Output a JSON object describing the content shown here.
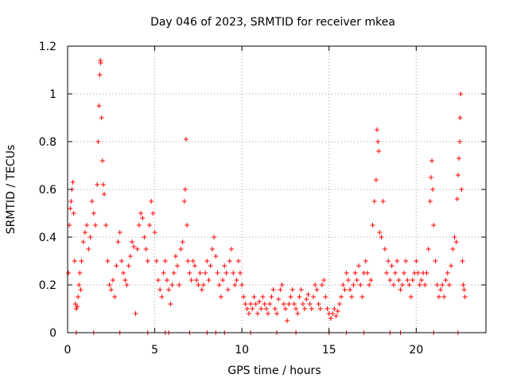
{
  "chart_data": {
    "type": "scatter",
    "title": "Day 046 of 2023, SRMTID for receiver mkea",
    "xlabel": "GPS time / hours",
    "ylabel": "SRMTID / TECUs",
    "xlim": [
      0,
      24
    ],
    "ylim": [
      0,
      1.2
    ],
    "xticks": [
      0,
      5,
      10,
      15,
      20
    ],
    "xtick_labels": [
      "0",
      "5",
      "10",
      "15",
      "20"
    ],
    "yticks": [
      0,
      0.2,
      0.4,
      0.6,
      0.8,
      1.0,
      1.2
    ],
    "ytick_labels": [
      "0",
      "0.2",
      "0.4",
      "0.6",
      "0.8",
      "1",
      "1.2"
    ],
    "grid": true,
    "marker": "+",
    "color": "#ff0000",
    "series": [
      {
        "name": "SRMTID",
        "points": [
          [
            0.05,
            0.25
          ],
          [
            0.1,
            0.45
          ],
          [
            0.15,
            0.52
          ],
          [
            0.2,
            0.55
          ],
          [
            0.25,
            0.6
          ],
          [
            0.3,
            0.63
          ],
          [
            0.35,
            0.5
          ],
          [
            0.4,
            0.3
          ],
          [
            0.45,
            0.12
          ],
          [
            0.5,
            0.1
          ],
          [
            0.55,
            0.11
          ],
          [
            0.6,
            0.15
          ],
          [
            0.65,
            0.2
          ],
          [
            0.7,
            0.25
          ],
          [
            0.75,
            0.18
          ],
          [
            0.8,
            0.3
          ],
          [
            0.9,
            0.38
          ],
          [
            1.0,
            0.42
          ],
          [
            1.1,
            0.45
          ],
          [
            1.2,
            0.35
          ],
          [
            1.3,
            0.4
          ],
          [
            1.4,
            0.55
          ],
          [
            1.5,
            0.5
          ],
          [
            1.6,
            0.45
          ],
          [
            1.7,
            0.62
          ],
          [
            1.75,
            0.8
          ],
          [
            1.8,
            0.95
          ],
          [
            1.85,
            1.08
          ],
          [
            1.88,
            1.14
          ],
          [
            1.9,
            1.13
          ],
          [
            1.95,
            0.9
          ],
          [
            2.0,
            0.72
          ],
          [
            2.05,
            0.62
          ],
          [
            2.1,
            0.58
          ],
          [
            2.2,
            0.45
          ],
          [
            2.3,
            0.3
          ],
          [
            2.4,
            0.2
          ],
          [
            2.5,
            0.18
          ],
          [
            2.6,
            0.22
          ],
          [
            2.7,
            0.15
          ],
          [
            2.8,
            0.28
          ],
          [
            2.9,
            0.38
          ],
          [
            3.0,
            0.42
          ],
          [
            3.1,
            0.3
          ],
          [
            3.2,
            0.25
          ],
          [
            3.3,
            0.22
          ],
          [
            3.4,
            0.2
          ],
          [
            3.5,
            0.28
          ],
          [
            3.6,
            0.32
          ],
          [
            3.7,
            0.38
          ],
          [
            3.8,
            0.36
          ],
          [
            3.9,
            0.08
          ],
          [
            4.0,
            0.35
          ],
          [
            4.1,
            0.45
          ],
          [
            4.2,
            0.5
          ],
          [
            4.3,
            0.48
          ],
          [
            4.4,
            0.4
          ],
          [
            4.5,
            0.35
          ],
          [
            4.6,
            0.3
          ],
          [
            4.7,
            0.45
          ],
          [
            4.8,
            0.55
          ],
          [
            4.9,
            0.5
          ],
          [
            5.0,
            0.42
          ],
          [
            5.1,
            0.3
          ],
          [
            5.2,
            0.22
          ],
          [
            5.3,
            0.18
          ],
          [
            5.4,
            0.15
          ],
          [
            5.5,
            0.25
          ],
          [
            5.6,
            0.3
          ],
          [
            5.7,
            0.22
          ],
          [
            5.8,
            0.18
          ],
          [
            5.9,
            0.12
          ],
          [
            6.0,
            0.2
          ],
          [
            6.1,
            0.25
          ],
          [
            6.2,
            0.32
          ],
          [
            6.3,
            0.28
          ],
          [
            6.4,
            0.2
          ],
          [
            6.5,
            0.35
          ],
          [
            6.6,
            0.38
          ],
          [
            6.7,
            0.55
          ],
          [
            6.75,
            0.6
          ],
          [
            6.8,
            0.81
          ],
          [
            6.85,
            0.45
          ],
          [
            6.9,
            0.3
          ],
          [
            7.0,
            0.25
          ],
          [
            7.1,
            0.22
          ],
          [
            7.2,
            0.3
          ],
          [
            7.3,
            0.28
          ],
          [
            7.4,
            0.22
          ],
          [
            7.5,
            0.2
          ],
          [
            7.6,
            0.25
          ],
          [
            7.7,
            0.18
          ],
          [
            7.8,
            0.2
          ],
          [
            7.9,
            0.25
          ],
          [
            8.0,
            0.3
          ],
          [
            8.1,
            0.22
          ],
          [
            8.2,
            0.28
          ],
          [
            8.3,
            0.35
          ],
          [
            8.4,
            0.4
          ],
          [
            8.5,
            0.32
          ],
          [
            8.6,
            0.25
          ],
          [
            8.7,
            0.2
          ],
          [
            8.8,
            0.15
          ],
          [
            8.9,
            0.22
          ],
          [
            9.0,
            0.28
          ],
          [
            9.1,
            0.25
          ],
          [
            9.2,
            0.18
          ],
          [
            9.3,
            0.3
          ],
          [
            9.4,
            0.35
          ],
          [
            9.5,
            0.25
          ],
          [
            9.6,
            0.2
          ],
          [
            9.7,
            0.22
          ],
          [
            9.8,
            0.3
          ],
          [
            9.9,
            0.25
          ],
          [
            10.0,
            0.2
          ],
          [
            10.1,
            0.15
          ],
          [
            10.2,
            0.12
          ],
          [
            10.3,
            0.1
          ],
          [
            10.4,
            0.08
          ],
          [
            10.5,
            0.12
          ],
          [
            10.6,
            0.1
          ],
          [
            10.7,
            0.15
          ],
          [
            10.8,
            0.12
          ],
          [
            10.9,
            0.08
          ],
          [
            11.0,
            0.13
          ],
          [
            11.1,
            0.1
          ],
          [
            11.2,
            0.15
          ],
          [
            11.3,
            0.12
          ],
          [
            11.4,
            0.1
          ],
          [
            11.5,
            0.08
          ],
          [
            11.6,
            0.12
          ],
          [
            11.7,
            0.15
          ],
          [
            11.8,
            0.18
          ],
          [
            11.9,
            0.1
          ],
          [
            12.0,
            0.08
          ],
          [
            12.1,
            0.14
          ],
          [
            12.2,
            0.18
          ],
          [
            12.3,
            0.2
          ],
          [
            12.4,
            0.12
          ],
          [
            12.5,
            0.1
          ],
          [
            12.6,
            0.05
          ],
          [
            12.7,
            0.12
          ],
          [
            12.8,
            0.15
          ],
          [
            12.9,
            0.18
          ],
          [
            13.0,
            0.12
          ],
          [
            13.1,
            0.1
          ],
          [
            13.2,
            0.08
          ],
          [
            13.3,
            0.15
          ],
          [
            13.4,
            0.18
          ],
          [
            13.5,
            0.12
          ],
          [
            13.6,
            0.1
          ],
          [
            13.7,
            0.14
          ],
          [
            13.8,
            0.16
          ],
          [
            13.9,
            0.12
          ],
          [
            14.0,
            0.1
          ],
          [
            14.1,
            0.15
          ],
          [
            14.2,
            0.2
          ],
          [
            14.3,
            0.18
          ],
          [
            14.4,
            0.12
          ],
          [
            14.5,
            0.1
          ],
          [
            14.6,
            0.2
          ],
          [
            14.7,
            0.22
          ],
          [
            14.8,
            0.15
          ],
          [
            14.9,
            0.1
          ],
          [
            15.0,
            0.08
          ],
          [
            15.1,
            0.06
          ],
          [
            15.2,
            0.08
          ],
          [
            15.3,
            0.1
          ],
          [
            15.4,
            0.07
          ],
          [
            15.5,
            0.09
          ],
          [
            15.6,
            0.12
          ],
          [
            15.7,
            0.15
          ],
          [
            15.8,
            0.2
          ],
          [
            15.9,
            0.18
          ],
          [
            16.0,
            0.25
          ],
          [
            16.1,
            0.22
          ],
          [
            16.2,
            0.18
          ],
          [
            16.3,
            0.15
          ],
          [
            16.4,
            0.2
          ],
          [
            16.5,
            0.25
          ],
          [
            16.6,
            0.22
          ],
          [
            16.7,
            0.28
          ],
          [
            16.8,
            0.2
          ],
          [
            16.9,
            0.15
          ],
          [
            17.0,
            0.25
          ],
          [
            17.1,
            0.3
          ],
          [
            17.2,
            0.25
          ],
          [
            17.3,
            0.2
          ],
          [
            17.4,
            0.22
          ],
          [
            17.5,
            0.45
          ],
          [
            17.6,
            0.55
          ],
          [
            17.7,
            0.64
          ],
          [
            17.75,
            0.85
          ],
          [
            17.8,
            0.8
          ],
          [
            17.85,
            0.76
          ],
          [
            17.9,
            0.42
          ],
          [
            18.0,
            0.4
          ],
          [
            18.1,
            0.55
          ],
          [
            18.2,
            0.35
          ],
          [
            18.3,
            0.25
          ],
          [
            18.4,
            0.3
          ],
          [
            18.5,
            0.22
          ],
          [
            18.6,
            0.28
          ],
          [
            18.7,
            0.2
          ],
          [
            18.8,
            0.25
          ],
          [
            18.9,
            0.3
          ],
          [
            19.0,
            0.22
          ],
          [
            19.1,
            0.18
          ],
          [
            19.2,
            0.2
          ],
          [
            19.3,
            0.25
          ],
          [
            19.4,
            0.3
          ],
          [
            19.5,
            0.22
          ],
          [
            19.6,
            0.2
          ],
          [
            19.7,
            0.15
          ],
          [
            19.8,
            0.22
          ],
          [
            19.9,
            0.25
          ],
          [
            20.0,
            0.3
          ],
          [
            20.1,
            0.25
          ],
          [
            20.2,
            0.2
          ],
          [
            20.3,
            0.22
          ],
          [
            20.4,
            0.25
          ],
          [
            20.5,
            0.2
          ],
          [
            20.6,
            0.25
          ],
          [
            20.7,
            0.35
          ],
          [
            20.8,
            0.55
          ],
          [
            20.85,
            0.65
          ],
          [
            20.9,
            0.72
          ],
          [
            20.95,
            0.6
          ],
          [
            21.0,
            0.45
          ],
          [
            21.1,
            0.3
          ],
          [
            21.2,
            0.2
          ],
          [
            21.3,
            0.15
          ],
          [
            21.4,
            0.18
          ],
          [
            21.5,
            0.2
          ],
          [
            21.6,
            0.15
          ],
          [
            21.7,
            0.22
          ],
          [
            21.8,
            0.25
          ],
          [
            21.9,
            0.2
          ],
          [
            22.0,
            0.28
          ],
          [
            22.1,
            0.35
          ],
          [
            22.2,
            0.4
          ],
          [
            22.3,
            0.38
          ],
          [
            22.35,
            0.56
          ],
          [
            22.4,
            0.66
          ],
          [
            22.45,
            0.73
          ],
          [
            22.5,
            0.8
          ],
          [
            22.52,
            0.9
          ],
          [
            22.55,
            1.0
          ],
          [
            22.6,
            0.6
          ],
          [
            22.65,
            0.3
          ],
          [
            22.7,
            0.2
          ],
          [
            22.75,
            0.18
          ],
          [
            22.8,
            0.15
          ],
          [
            0.5,
            0
          ],
          [
            1.5,
            0
          ],
          [
            3.0,
            0
          ],
          [
            4.6,
            0
          ],
          [
            5.6,
            0
          ],
          [
            5.8,
            0
          ],
          [
            7.0,
            0
          ],
          [
            8.0,
            0
          ],
          [
            8.5,
            0
          ],
          [
            9.0,
            0
          ],
          [
            10.5,
            0
          ],
          [
            12.0,
            0
          ],
          [
            13.1,
            0
          ],
          [
            15.0,
            0
          ],
          [
            16.0,
            0
          ],
          [
            17.0,
            0
          ],
          [
            18.5,
            0
          ],
          [
            19.1,
            0
          ],
          [
            21.0,
            0
          ],
          [
            22.4,
            0
          ]
        ]
      }
    ]
  }
}
